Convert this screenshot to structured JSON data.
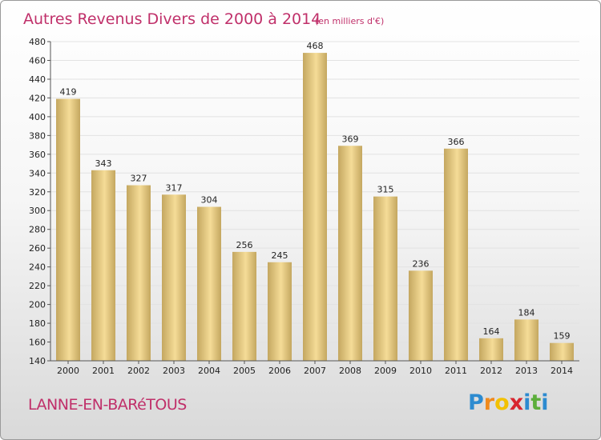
{
  "title": "Autres Revenus Divers de 2000 à 2014",
  "subtitle": "(en milliers d'€)",
  "commune": "LANNE-EN-BARéTOUS",
  "logo": {
    "letters": [
      "P",
      "r",
      "o",
      "x",
      "i",
      "t",
      "i"
    ],
    "colors": [
      "#2d8bd0",
      "#f08a1c",
      "#f2c100",
      "#d8262f",
      "#2d8bd0",
      "#5cae3b",
      "#2d8bd0"
    ]
  },
  "colors": {
    "accent": "#c0306a",
    "bar_light": "#f5dc97",
    "bar_dark": "#c4a760"
  },
  "chart_data": {
    "type": "bar",
    "categories": [
      "2000",
      "2001",
      "2002",
      "2003",
      "2004",
      "2005",
      "2006",
      "2007",
      "2008",
      "2009",
      "2010",
      "2011",
      "2012",
      "2013",
      "2014"
    ],
    "values": [
      419,
      343,
      327,
      317,
      304,
      256,
      245,
      468,
      369,
      315,
      236,
      366,
      164,
      184,
      159
    ],
    "ylim": [
      140,
      480
    ],
    "yticks": [
      140,
      160,
      180,
      200,
      220,
      240,
      260,
      280,
      300,
      320,
      340,
      360,
      380,
      400,
      420,
      440,
      460,
      480
    ],
    "grid": true,
    "xlabel": "",
    "ylabel": ""
  }
}
